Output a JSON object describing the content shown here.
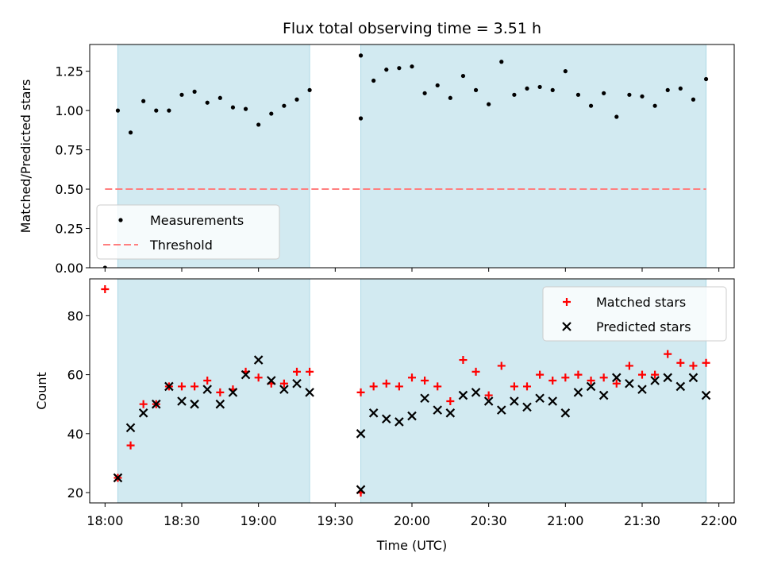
{
  "chart_data": {
    "type": "scatter",
    "title": "Flux total observing time = 3.51 h",
    "xlabel": "Time (UTC)",
    "x_ticks": [
      "18:00",
      "18:30",
      "19:00",
      "19:30",
      "20:00",
      "20:30",
      "21:00",
      "21:30",
      "22:00"
    ],
    "x_range_minutes_since_1800": [
      -6,
      246
    ],
    "observing_windows": [
      {
        "start": "18:05",
        "end": "19:20"
      },
      {
        "start": "19:40",
        "end": "21:55"
      }
    ],
    "colors": {
      "shade": "#add8e6",
      "measurement": "#000000",
      "threshold": "#ff7f7f",
      "matched": "#ff0000",
      "predicted": "#000000"
    },
    "panels": [
      {
        "ylabel": "Matched/Predicted stars",
        "ylim": [
          0,
          1.42
        ],
        "y_ticks": [
          "0.00",
          "0.25",
          "0.50",
          "0.75",
          "1.00",
          "1.25"
        ],
        "legend_placement": "lower-left",
        "series": [
          {
            "name": "Measurements",
            "marker": "dot",
            "x": [
              "18:00",
              "18:05",
              "18:10",
              "18:15",
              "18:20",
              "18:25",
              "18:30",
              "18:35",
              "18:40",
              "18:45",
              "18:50",
              "18:55",
              "19:00",
              "19:05",
              "19:10",
              "19:15",
              "19:20",
              "19:40",
              "19:40",
              "19:45",
              "19:50",
              "19:55",
              "20:00",
              "20:05",
              "20:10",
              "20:15",
              "20:20",
              "20:25",
              "20:30",
              "20:35",
              "20:40",
              "20:45",
              "20:50",
              "20:55",
              "21:00",
              "21:05",
              "21:10",
              "21:15",
              "21:20",
              "21:25",
              "21:30",
              "21:35",
              "21:40",
              "21:45",
              "21:50",
              "21:55"
            ],
            "y": [
              0.0,
              1.0,
              0.86,
              1.06,
              1.0,
              1.0,
              1.1,
              1.12,
              1.05,
              1.08,
              1.02,
              1.01,
              0.91,
              0.98,
              1.03,
              1.07,
              1.13,
              0.95,
              1.35,
              1.19,
              1.26,
              1.27,
              1.28,
              1.11,
              1.16,
              1.08,
              1.22,
              1.13,
              1.04,
              1.31,
              1.1,
              1.14,
              1.15,
              1.13,
              1.25,
              1.1,
              1.03,
              1.11,
              0.96,
              1.1,
              1.09,
              1.03,
              1.13,
              1.14,
              1.07,
              1.2
            ]
          },
          {
            "name": "Threshold",
            "marker": "dashed-line",
            "x": [
              "18:00",
              "21:55"
            ],
            "y": [
              0.5,
              0.5
            ]
          }
        ]
      },
      {
        "ylabel": "Count",
        "ylim": [
          16.5,
          92.5
        ],
        "y_ticks": [
          "20",
          "40",
          "60",
          "80"
        ],
        "legend_placement": "upper-right",
        "series": [
          {
            "name": "Matched stars",
            "marker": "plus",
            "x": [
              "18:00",
              "18:05",
              "18:10",
              "18:15",
              "18:20",
              "18:25",
              "18:30",
              "18:35",
              "18:40",
              "18:45",
              "18:50",
              "18:55",
              "19:00",
              "19:05",
              "19:10",
              "19:15",
              "19:20",
              "19:40",
              "19:40",
              "19:45",
              "19:50",
              "19:55",
              "20:00",
              "20:05",
              "20:10",
              "20:15",
              "20:20",
              "20:25",
              "20:30",
              "20:35",
              "20:40",
              "20:45",
              "20:50",
              "20:55",
              "21:00",
              "21:05",
              "21:10",
              "21:15",
              "21:20",
              "21:25",
              "21:30",
              "21:35",
              "21:40",
              "21:45",
              "21:50",
              "21:55"
            ],
            "y": [
              89,
              25,
              36,
              50,
              50,
              56,
              56,
              56,
              58,
              54,
              55,
              61,
              59,
              57,
              57,
              61,
              61,
              20,
              54,
              56,
              57,
              56,
              59,
              58,
              56,
              51,
              65,
              61,
              53,
              63,
              56,
              56,
              60,
              58,
              59,
              60,
              58,
              59,
              57,
              63,
              60,
              60,
              67,
              64,
              63,
              64
            ]
          },
          {
            "name": "Predicted stars",
            "marker": "cross",
            "x": [
              "18:05",
              "18:10",
              "18:15",
              "18:20",
              "18:25",
              "18:30",
              "18:35",
              "18:40",
              "18:45",
              "18:50",
              "18:55",
              "19:00",
              "19:05",
              "19:10",
              "19:15",
              "19:20",
              "19:40",
              "19:40",
              "19:45",
              "19:50",
              "19:55",
              "20:00",
              "20:05",
              "20:10",
              "20:15",
              "20:20",
              "20:25",
              "20:30",
              "20:35",
              "20:40",
              "20:45",
              "20:50",
              "20:55",
              "21:00",
              "21:05",
              "21:10",
              "21:15",
              "21:20",
              "21:25",
              "21:30",
              "21:35",
              "21:40",
              "21:45",
              "21:50",
              "21:55"
            ],
            "y": [
              25,
              42,
              47,
              50,
              56,
              51,
              50,
              55,
              50,
              54,
              60,
              65,
              58,
              55,
              57,
              54,
              21,
              40,
              47,
              45,
              44,
              46,
              52,
              48,
              47,
              53,
              54,
              51,
              48,
              51,
              49,
              52,
              51,
              47,
              54,
              56,
              53,
              59,
              57,
              55,
              58,
              59,
              56,
              59,
              53
            ]
          }
        ]
      }
    ]
  }
}
